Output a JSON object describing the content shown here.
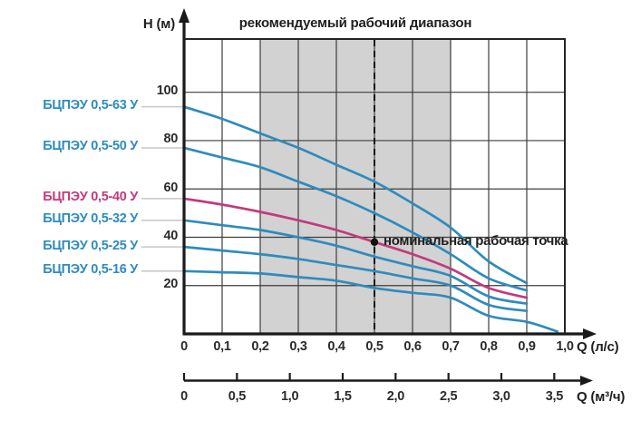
{
  "colors": {
    "curve_blue": "#2f8bbd",
    "curve_pink": "#c23a7d",
    "band": "#d2d2d2",
    "grid": "#3d3d3d",
    "axis": "#1a1a1a",
    "connector": "#c6c6c6",
    "text": "#2b2b2b"
  },
  "chart_data": {
    "type": "line",
    "title": "рекомендуемый рабочий диапазон",
    "ylabel": "H (м)",
    "xlabel_primary": "Q (л/с)",
    "xlabel_secondary": "Q (м³/ч)",
    "xlim_lps": [
      0,
      1.0
    ],
    "ylim": [
      0,
      122
    ],
    "grid": true,
    "y_ticks": [
      100,
      80,
      60,
      40,
      20
    ],
    "x_ticks_lps": [
      "0",
      "0,1",
      "0,2",
      "0,3",
      "0,4",
      "0,5",
      "0,6",
      "0,7",
      "0,8",
      "0,9",
      "1,0"
    ],
    "x_ticks_m3h": [
      "0",
      "0,5",
      "1,0",
      "1,5",
      "2,0",
      "2,5",
      "3,0",
      "3,5"
    ],
    "m3h_per_lps": 3.6,
    "recommended_range_lps": [
      0.2,
      0.7
    ],
    "dashed_line_lps": 0.5,
    "nominal_point": {
      "label": "номинальная рабочая точка",
      "q_lps": 0.5,
      "h_m": 38
    },
    "series": [
      {
        "name": "БЦПЭУ 0,5-63 У",
        "color": "#2f8bbd",
        "points": [
          [
            0,
            94
          ],
          [
            0.1,
            89
          ],
          [
            0.2,
            83
          ],
          [
            0.3,
            77
          ],
          [
            0.4,
            70
          ],
          [
            0.5,
            63
          ],
          [
            0.6,
            54
          ],
          [
            0.7,
            44
          ],
          [
            0.8,
            30
          ],
          [
            0.9,
            21
          ]
        ]
      },
      {
        "name": "БЦПЭУ 0,5-50 У",
        "color": "#2f8bbd",
        "points": [
          [
            0,
            77
          ],
          [
            0.1,
            73
          ],
          [
            0.2,
            69
          ],
          [
            0.3,
            63
          ],
          [
            0.4,
            57
          ],
          [
            0.5,
            50
          ],
          [
            0.6,
            42
          ],
          [
            0.7,
            33
          ],
          [
            0.8,
            23
          ],
          [
            0.9,
            18
          ]
        ]
      },
      {
        "name": "БЦПЭУ 0,5-40 У",
        "color": "#c23a7d",
        "points": [
          [
            0,
            56
          ],
          [
            0.1,
            53.5
          ],
          [
            0.2,
            50.5
          ],
          [
            0.3,
            47
          ],
          [
            0.4,
            43
          ],
          [
            0.5,
            38
          ],
          [
            0.6,
            33
          ],
          [
            0.7,
            27
          ],
          [
            0.8,
            19
          ],
          [
            0.9,
            15
          ]
        ]
      },
      {
        "name": "БЦПЭУ 0,5-32 У",
        "color": "#2f8bbd",
        "points": [
          [
            0,
            47
          ],
          [
            0.1,
            45
          ],
          [
            0.2,
            43
          ],
          [
            0.3,
            40
          ],
          [
            0.4,
            36.5
          ],
          [
            0.5,
            32
          ],
          [
            0.6,
            28
          ],
          [
            0.7,
            24
          ],
          [
            0.8,
            15.5
          ],
          [
            0.9,
            12.5
          ]
        ]
      },
      {
        "name": "БЦПЭУ 0,5-25 У",
        "color": "#2f8bbd",
        "points": [
          [
            0,
            36
          ],
          [
            0.1,
            34.5
          ],
          [
            0.2,
            33
          ],
          [
            0.3,
            31
          ],
          [
            0.4,
            28.5
          ],
          [
            0.5,
            26
          ],
          [
            0.6,
            23
          ],
          [
            0.7,
            20
          ],
          [
            0.8,
            12
          ],
          [
            0.9,
            9.5
          ]
        ]
      },
      {
        "name": "БЦПЭУ 0,5-16 У",
        "color": "#2f8bbd",
        "points": [
          [
            0,
            26
          ],
          [
            0.1,
            25.5
          ],
          [
            0.2,
            25
          ],
          [
            0.3,
            23.5
          ],
          [
            0.4,
            22
          ],
          [
            0.5,
            19
          ],
          [
            0.6,
            17
          ],
          [
            0.7,
            15
          ],
          [
            0.8,
            7.5
          ],
          [
            0.9,
            5
          ],
          [
            0.98,
            1
          ]
        ]
      }
    ]
  }
}
